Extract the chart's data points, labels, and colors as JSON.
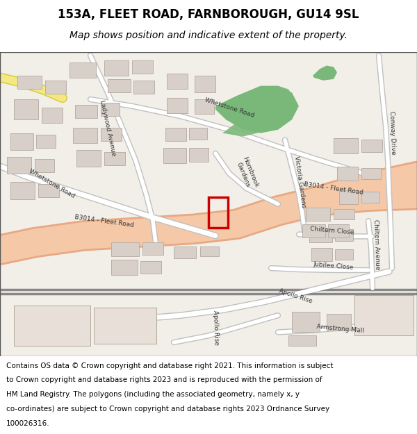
{
  "title": "153A, FLEET ROAD, FARNBOROUGH, GU14 9SL",
  "subtitle": "Map shows position and indicative extent of the property.",
  "copyright_lines": [
    "Contains OS data © Crown copyright and database right 2021. This information is subject",
    "to Crown copyright and database rights 2023 and is reproduced with the permission of",
    "HM Land Registry. The polygons (including the associated geometry, namely x, y",
    "co-ordinates) are subject to Crown copyright and database rights 2023 Ordnance Survey",
    "100026316."
  ],
  "map_bg": "#f2efe9",
  "road_color": "#f5c8a8",
  "road_outline": "#e8a882",
  "building_color": "#d8d0c8",
  "building_outline": "#b8b0a8",
  "green_area": "#7ab87a",
  "yellow_road": "#f5e882",
  "yellow_outline": "#d4c840",
  "plot_color": "#cc0000",
  "title_fontsize": 12,
  "subtitle_fontsize": 10,
  "copyright_fontsize": 7.5,
  "border_color": "#555555"
}
